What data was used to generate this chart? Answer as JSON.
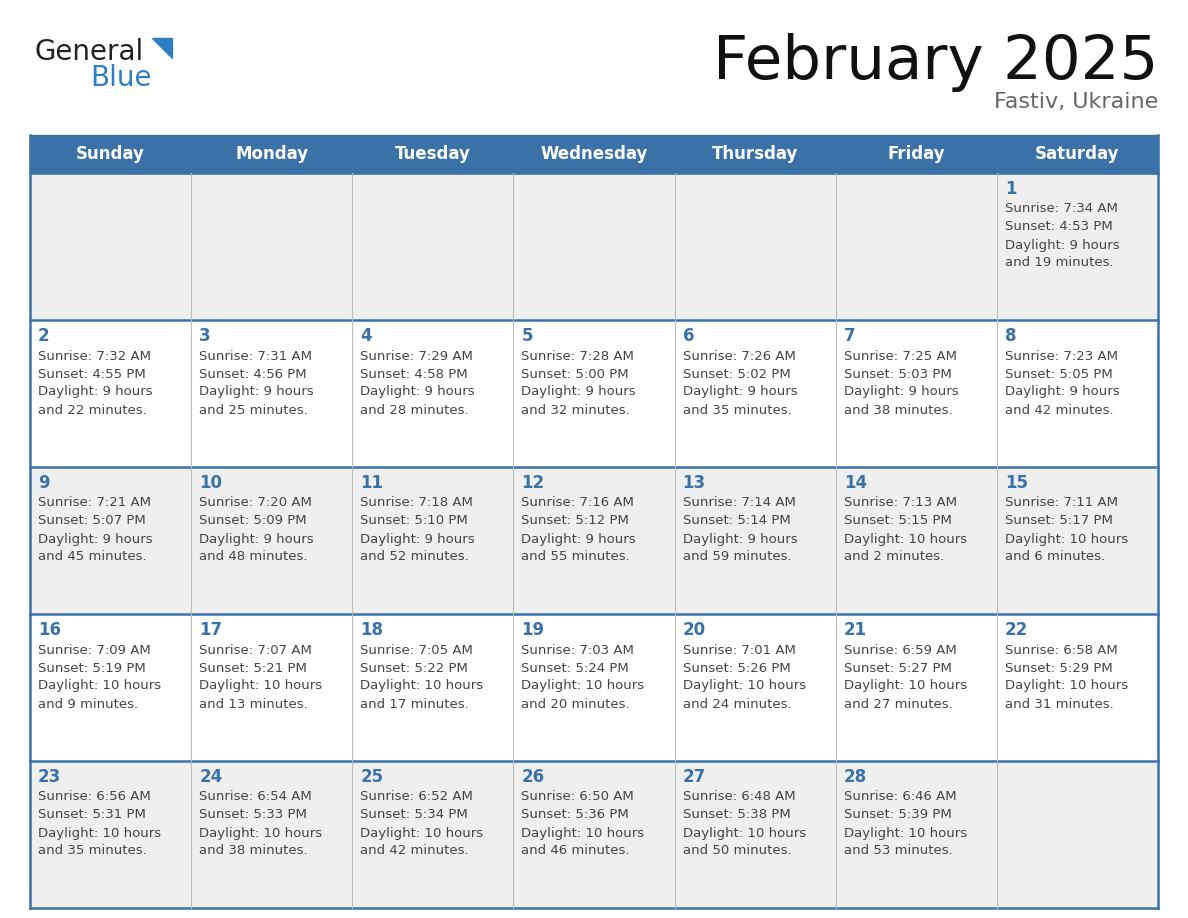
{
  "title": "February 2025",
  "subtitle": "Fastiv, Ukraine",
  "days_of_week": [
    "Sunday",
    "Monday",
    "Tuesday",
    "Wednesday",
    "Thursday",
    "Friday",
    "Saturday"
  ],
  "header_bg": "#3A72A8",
  "header_text": "#FFFFFF",
  "cell_bg_odd": "#EFEFEF",
  "cell_bg_even": "#FFFFFF",
  "day_number_color": "#3A72A8",
  "info_text_color": "#444444",
  "border_color": "#3A72A8",
  "sep_color": "#BBBBBB",
  "title_color": "#111111",
  "subtitle_color": "#666666",
  "logo_general_color": "#222222",
  "logo_blue_color": "#2E7EC2",
  "calendar_data": [
    [
      {
        "day": null,
        "sunrise": null,
        "sunset": null,
        "daylight": null
      },
      {
        "day": null,
        "sunrise": null,
        "sunset": null,
        "daylight": null
      },
      {
        "day": null,
        "sunrise": null,
        "sunset": null,
        "daylight": null
      },
      {
        "day": null,
        "sunrise": null,
        "sunset": null,
        "daylight": null
      },
      {
        "day": null,
        "sunrise": null,
        "sunset": null,
        "daylight": null
      },
      {
        "day": null,
        "sunrise": null,
        "sunset": null,
        "daylight": null
      },
      {
        "day": 1,
        "sunrise": "7:34 AM",
        "sunset": "4:53 PM",
        "daylight": "9 hours and 19 minutes."
      }
    ],
    [
      {
        "day": 2,
        "sunrise": "7:32 AM",
        "sunset": "4:55 PM",
        "daylight": "9 hours and 22 minutes."
      },
      {
        "day": 3,
        "sunrise": "7:31 AM",
        "sunset": "4:56 PM",
        "daylight": "9 hours and 25 minutes."
      },
      {
        "day": 4,
        "sunrise": "7:29 AM",
        "sunset": "4:58 PM",
        "daylight": "9 hours and 28 minutes."
      },
      {
        "day": 5,
        "sunrise": "7:28 AM",
        "sunset": "5:00 PM",
        "daylight": "9 hours and 32 minutes."
      },
      {
        "day": 6,
        "sunrise": "7:26 AM",
        "sunset": "5:02 PM",
        "daylight": "9 hours and 35 minutes."
      },
      {
        "day": 7,
        "sunrise": "7:25 AM",
        "sunset": "5:03 PM",
        "daylight": "9 hours and 38 minutes."
      },
      {
        "day": 8,
        "sunrise": "7:23 AM",
        "sunset": "5:05 PM",
        "daylight": "9 hours and 42 minutes."
      }
    ],
    [
      {
        "day": 9,
        "sunrise": "7:21 AM",
        "sunset": "5:07 PM",
        "daylight": "9 hours and 45 minutes."
      },
      {
        "day": 10,
        "sunrise": "7:20 AM",
        "sunset": "5:09 PM",
        "daylight": "9 hours and 48 minutes."
      },
      {
        "day": 11,
        "sunrise": "7:18 AM",
        "sunset": "5:10 PM",
        "daylight": "9 hours and 52 minutes."
      },
      {
        "day": 12,
        "sunrise": "7:16 AM",
        "sunset": "5:12 PM",
        "daylight": "9 hours and 55 minutes."
      },
      {
        "day": 13,
        "sunrise": "7:14 AM",
        "sunset": "5:14 PM",
        "daylight": "9 hours and 59 minutes."
      },
      {
        "day": 14,
        "sunrise": "7:13 AM",
        "sunset": "5:15 PM",
        "daylight": "10 hours and 2 minutes."
      },
      {
        "day": 15,
        "sunrise": "7:11 AM",
        "sunset": "5:17 PM",
        "daylight": "10 hours and 6 minutes."
      }
    ],
    [
      {
        "day": 16,
        "sunrise": "7:09 AM",
        "sunset": "5:19 PM",
        "daylight": "10 hours and 9 minutes."
      },
      {
        "day": 17,
        "sunrise": "7:07 AM",
        "sunset": "5:21 PM",
        "daylight": "10 hours and 13 minutes."
      },
      {
        "day": 18,
        "sunrise": "7:05 AM",
        "sunset": "5:22 PM",
        "daylight": "10 hours and 17 minutes."
      },
      {
        "day": 19,
        "sunrise": "7:03 AM",
        "sunset": "5:24 PM",
        "daylight": "10 hours and 20 minutes."
      },
      {
        "day": 20,
        "sunrise": "7:01 AM",
        "sunset": "5:26 PM",
        "daylight": "10 hours and 24 minutes."
      },
      {
        "day": 21,
        "sunrise": "6:59 AM",
        "sunset": "5:27 PM",
        "daylight": "10 hours and 27 minutes."
      },
      {
        "day": 22,
        "sunrise": "6:58 AM",
        "sunset": "5:29 PM",
        "daylight": "10 hours and 31 minutes."
      }
    ],
    [
      {
        "day": 23,
        "sunrise": "6:56 AM",
        "sunset": "5:31 PM",
        "daylight": "10 hours and 35 minutes."
      },
      {
        "day": 24,
        "sunrise": "6:54 AM",
        "sunset": "5:33 PM",
        "daylight": "10 hours and 38 minutes."
      },
      {
        "day": 25,
        "sunrise": "6:52 AM",
        "sunset": "5:34 PM",
        "daylight": "10 hours and 42 minutes."
      },
      {
        "day": 26,
        "sunrise": "6:50 AM",
        "sunset": "5:36 PM",
        "daylight": "10 hours and 46 minutes."
      },
      {
        "day": 27,
        "sunrise": "6:48 AM",
        "sunset": "5:38 PM",
        "daylight": "10 hours and 50 minutes."
      },
      {
        "day": 28,
        "sunrise": "6:46 AM",
        "sunset": "5:39 PM",
        "daylight": "10 hours and 53 minutes."
      },
      {
        "day": null,
        "sunrise": null,
        "sunset": null,
        "daylight": null
      }
    ]
  ]
}
